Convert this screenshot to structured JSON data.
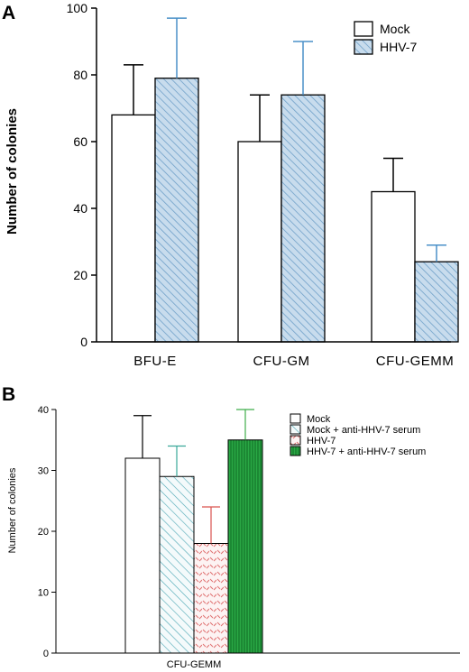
{
  "chart_data": [
    {
      "type": "bar",
      "panel": "A",
      "ylabel": "Number of colonies",
      "xlabel": "",
      "ylim": [
        0,
        100
      ],
      "yticks": [
        0,
        20,
        40,
        60,
        80,
        100
      ],
      "categories": [
        "BFU-E",
        "CFU-GM",
        "CFU-GEMM"
      ],
      "series": [
        {
          "name": "Mock",
          "values": [
            68,
            60,
            45
          ],
          "errors": [
            15,
            14,
            10
          ],
          "fill": "#ffffff",
          "pattern": "none",
          "error_color": "#000000"
        },
        {
          "name": "HHV-7",
          "values": [
            79,
            74,
            24
          ],
          "errors": [
            18,
            16,
            5
          ],
          "fill": "#c8dced",
          "pattern": "diagonal",
          "error_color": "#4a90c8"
        }
      ],
      "legend": "top-right",
      "grid": false
    },
    {
      "type": "bar",
      "panel": "B",
      "ylabel": "Number of colonies",
      "xlabel": "",
      "ylim": [
        0,
        40
      ],
      "yticks": [
        0,
        10,
        20,
        30,
        40
      ],
      "categories": [
        "CFU-GEMM"
      ],
      "series": [
        {
          "name": "Mock",
          "values": [
            32
          ],
          "errors": [
            7
          ],
          "fill": "#ffffff",
          "pattern": "none",
          "error_color": "#000000"
        },
        {
          "name": "Mock + anti-HHV-7 serum",
          "values": [
            29
          ],
          "errors": [
            5
          ],
          "fill": "#eef6f8",
          "pattern": "diagonal-teal",
          "error_color": "#3aa89a"
        },
        {
          "name": "HHV-7",
          "values": [
            18
          ],
          "errors": [
            6
          ],
          "fill": "#fbeeee",
          "pattern": "dash-red",
          "error_color": "#d9534f"
        },
        {
          "name": "HHV-7 + anti-HHV-7 serum",
          "values": [
            35
          ],
          "errors": [
            5
          ],
          "fill": "#1e9a3a",
          "pattern": "vertical-dark",
          "error_color": "#3fae4a"
        }
      ],
      "legend": "top-right",
      "grid": false
    }
  ]
}
